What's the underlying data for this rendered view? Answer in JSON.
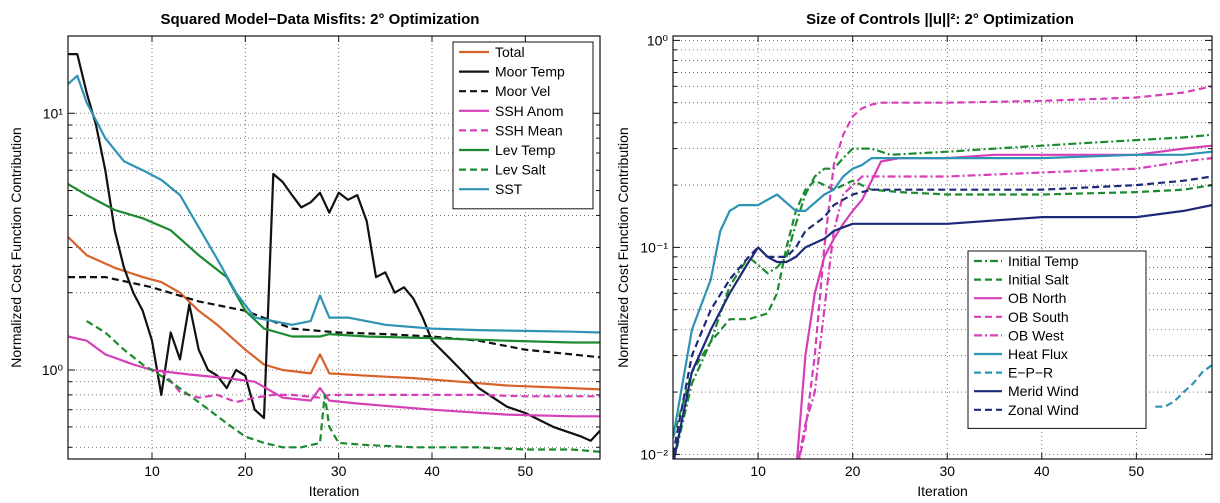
{
  "chart_data": [
    {
      "type": "line",
      "title": "Squared Model−Data Misfits: 2° Optimization",
      "xlabel": "Iteration",
      "ylabel": "Normalized Cost Function Contribution",
      "xlim": [
        1,
        58
      ],
      "ylim": [
        0.45,
        20
      ],
      "yscale": "log",
      "xticks": [
        10,
        20,
        30,
        40,
        50
      ],
      "yticks": [
        1,
        10
      ],
      "ytick_labels": [
        "10⁰",
        "10¹"
      ],
      "grid": true,
      "legend": "top-right",
      "series": [
        {
          "name": "Total",
          "color": "#d9622b",
          "dash": "solid",
          "x": [
            1,
            3,
            6,
            9,
            11,
            13,
            15,
            17,
            20,
            22,
            24,
            27,
            28,
            29,
            33,
            38,
            43,
            48,
            55,
            58
          ],
          "y": [
            3.3,
            2.8,
            2.5,
            2.3,
            2.2,
            2.0,
            1.7,
            1.5,
            1.2,
            1.05,
            1.0,
            0.97,
            1.15,
            0.97,
            0.95,
            0.93,
            0.9,
            0.87,
            0.85,
            0.84
          ]
        },
        {
          "name": "Moor Temp",
          "color": "#111111",
          "dash": "solid",
          "x": [
            1,
            2,
            3,
            4,
            5,
            6,
            7,
            8,
            9,
            10,
            11,
            12,
            13,
            14,
            15,
            16,
            17,
            18,
            19,
            20,
            21,
            22,
            23,
            24,
            25,
            26,
            27,
            28,
            29,
            30,
            31,
            32,
            33,
            34,
            35,
            36,
            37,
            38,
            39,
            40,
            42,
            45,
            48,
            50,
            53,
            56,
            57,
            58
          ],
          "y": [
            17,
            17,
            12,
            9,
            6,
            3.5,
            2.5,
            2,
            1.7,
            1.3,
            0.8,
            1.4,
            1.1,
            1.8,
            1.2,
            1.0,
            0.95,
            0.85,
            1.0,
            0.95,
            0.7,
            0.65,
            5.8,
            5.4,
            4.8,
            4.3,
            4.5,
            4.9,
            4.1,
            4.9,
            4.6,
            4.8,
            3.8,
            2.3,
            2.4,
            2.0,
            2.1,
            1.9,
            1.6,
            1.3,
            1.1,
            0.85,
            0.72,
            0.68,
            0.6,
            0.55,
            0.53,
            0.58
          ]
        },
        {
          "name": "Moor Vel",
          "color": "#111111",
          "dash": "dashed",
          "x": [
            1,
            5,
            10,
            15,
            20,
            25,
            30,
            35,
            40,
            45,
            50,
            55,
            58
          ],
          "y": [
            2.3,
            2.3,
            2.1,
            1.85,
            1.7,
            1.45,
            1.4,
            1.38,
            1.35,
            1.3,
            1.2,
            1.15,
            1.12
          ]
        },
        {
          "name": "SSH Anom",
          "color": "#d63fb8",
          "dash": "solid",
          "x": [
            1,
            3,
            5,
            8,
            10,
            14,
            18,
            21,
            24,
            27,
            28,
            29,
            32,
            40,
            48,
            55,
            58
          ],
          "y": [
            1.35,
            1.3,
            1.15,
            1.05,
            1.0,
            0.96,
            0.93,
            0.9,
            0.78,
            0.76,
            0.85,
            0.76,
            0.74,
            0.7,
            0.67,
            0.66,
            0.66
          ]
        },
        {
          "name": "SSH Mean",
          "color": "#d63fb8",
          "dash": "dashed",
          "x": [
            11,
            13,
            15,
            17,
            19,
            21,
            23,
            25,
            28,
            29,
            32,
            38,
            45,
            50,
            55,
            58
          ],
          "y": [
            1.0,
            0.82,
            0.78,
            0.8,
            0.75,
            0.78,
            0.8,
            0.8,
            0.78,
            0.8,
            0.8,
            0.8,
            0.8,
            0.79,
            0.79,
            0.79
          ]
        },
        {
          "name": "Lev Temp",
          "color": "#1c8a2e",
          "dash": "solid",
          "x": [
            1,
            3,
            6,
            9,
            12,
            15,
            18,
            20,
            22,
            25,
            28,
            29,
            33,
            40,
            48,
            55,
            58
          ],
          "y": [
            5.3,
            4.8,
            4.2,
            3.9,
            3.5,
            2.8,
            2.3,
            1.7,
            1.45,
            1.35,
            1.35,
            1.38,
            1.35,
            1.33,
            1.3,
            1.28,
            1.28
          ]
        },
        {
          "name": "Lev Salt",
          "color": "#1c8a2e",
          "dash": "dashed",
          "x": [
            3,
            5,
            7,
            9,
            12,
            15,
            18,
            20,
            22,
            24,
            26,
            28,
            28.5,
            29,
            30,
            33,
            38,
            45,
            50,
            55,
            58
          ],
          "y": [
            1.55,
            1.4,
            1.2,
            1.05,
            0.9,
            0.75,
            0.62,
            0.55,
            0.52,
            0.5,
            0.5,
            0.52,
            0.8,
            0.6,
            0.52,
            0.51,
            0.5,
            0.5,
            0.49,
            0.49,
            0.48
          ]
        },
        {
          "name": "SST",
          "color": "#2e93b5",
          "dash": "solid",
          "x": [
            1,
            2,
            3,
            5,
            7,
            9,
            11,
            13,
            15,
            17,
            19,
            21,
            23,
            25,
            27,
            28,
            29,
            31,
            35,
            40,
            45,
            50,
            55,
            58
          ],
          "y": [
            13,
            14,
            11,
            8,
            6.5,
            6,
            5.5,
            4.8,
            3.6,
            2.7,
            2.0,
            1.6,
            1.55,
            1.5,
            1.55,
            1.95,
            1.6,
            1.6,
            1.5,
            1.45,
            1.43,
            1.42,
            1.41,
            1.4
          ]
        }
      ]
    },
    {
      "type": "line",
      "title": "Size of Controls ||u||²: 2° Optimization",
      "xlabel": "Iteration",
      "ylabel": "Normalized Cost Function Contribution",
      "xlim": [
        1,
        58
      ],
      "ylim": [
        0.0095,
        1.05
      ],
      "yscale": "log",
      "xticks": [
        10,
        20,
        30,
        40,
        50
      ],
      "yticks": [
        0.01,
        0.1,
        1
      ],
      "ytick_labels": [
        "10⁻²",
        "10⁻¹",
        "10⁰"
      ],
      "grid": true,
      "legend": "bottom-right",
      "series": [
        {
          "name": "Initial Temp",
          "color": "#1c8a2e",
          "dash": "dashdot",
          "x": [
            1,
            3,
            5,
            7,
            9,
            11,
            12,
            13,
            14,
            15,
            16,
            17,
            18,
            19,
            20,
            21,
            22,
            24,
            30,
            35,
            40,
            45,
            50,
            55,
            58
          ],
          "y": [
            0.009,
            0.022,
            0.035,
            0.065,
            0.09,
            0.075,
            0.08,
            0.09,
            0.13,
            0.18,
            0.22,
            0.24,
            0.24,
            0.27,
            0.3,
            0.3,
            0.3,
            0.28,
            0.29,
            0.3,
            0.31,
            0.32,
            0.33,
            0.34,
            0.35
          ]
        },
        {
          "name": "Initial Salt",
          "color": "#1c8a2e",
          "dash": "dashed",
          "x": [
            1,
            3,
            5,
            7,
            9,
            11,
            12,
            13,
            14,
            15,
            16,
            17,
            18,
            19,
            20,
            22,
            25,
            30,
            40,
            50,
            55,
            58
          ],
          "y": [
            0.012,
            0.025,
            0.035,
            0.045,
            0.045,
            0.048,
            0.06,
            0.1,
            0.15,
            0.19,
            0.21,
            0.2,
            0.19,
            0.2,
            0.21,
            0.19,
            0.185,
            0.18,
            0.18,
            0.185,
            0.19,
            0.2
          ]
        },
        {
          "name": "OB North",
          "color": "#d63fb8",
          "dash": "solid",
          "x": [
            14,
            15,
            16,
            17,
            18,
            19,
            20,
            21,
            22,
            23,
            25,
            30,
            35,
            40,
            45,
            50,
            55,
            58
          ],
          "y": [
            0.008,
            0.03,
            0.06,
            0.09,
            0.11,
            0.13,
            0.15,
            0.17,
            0.21,
            0.26,
            0.27,
            0.27,
            0.28,
            0.28,
            0.28,
            0.28,
            0.3,
            0.31
          ]
        },
        {
          "name": "OB South",
          "color": "#d63fb8",
          "dash": "dashed",
          "x": [
            14,
            15,
            16,
            17,
            18,
            19,
            20,
            21,
            22,
            23,
            25,
            30,
            40,
            50,
            55,
            58
          ],
          "y": [
            0.008,
            0.013,
            0.03,
            0.1,
            0.25,
            0.35,
            0.43,
            0.47,
            0.49,
            0.5,
            0.5,
            0.5,
            0.51,
            0.53,
            0.56,
            0.6
          ]
        },
        {
          "name": "OB West",
          "color": "#d63fb8",
          "dash": "dashdot",
          "x": [
            14,
            15,
            16,
            17,
            18,
            19,
            20,
            21,
            22,
            23,
            25,
            30,
            40,
            50,
            55,
            58
          ],
          "y": [
            0.008,
            0.014,
            0.02,
            0.05,
            0.12,
            0.18,
            0.2,
            0.22,
            0.22,
            0.22,
            0.22,
            0.22,
            0.23,
            0.24,
            0.26,
            0.27
          ]
        },
        {
          "name": "Heat Flux",
          "color": "#2e93b5",
          "dash": "solid",
          "x": [
            1,
            3,
            5,
            6,
            7,
            8,
            10,
            12,
            14,
            15,
            17,
            18,
            19,
            20,
            21,
            22,
            24,
            30,
            40,
            50,
            55,
            58
          ],
          "y": [
            0.012,
            0.04,
            0.07,
            0.12,
            0.15,
            0.16,
            0.16,
            0.18,
            0.15,
            0.15,
            0.18,
            0.19,
            0.22,
            0.24,
            0.25,
            0.27,
            0.27,
            0.27,
            0.27,
            0.28,
            0.28,
            0.29
          ]
        },
        {
          "name": "E−P−R",
          "color": "#2e93b5",
          "dash": "dashed",
          "x": [
            52,
            53,
            54,
            55,
            56,
            57,
            58
          ],
          "y": [
            0.017,
            0.017,
            0.018,
            0.02,
            0.022,
            0.025,
            0.027
          ]
        },
        {
          "name": "Merid Wind",
          "color": "#1e2a78",
          "dash": "solid",
          "x": [
            1,
            3,
            5,
            7,
            9,
            10,
            11,
            12,
            13,
            14,
            15,
            17,
            18,
            19,
            20,
            22,
            25,
            30,
            40,
            50,
            55,
            58
          ],
          "y": [
            0.009,
            0.025,
            0.04,
            0.06,
            0.085,
            0.1,
            0.09,
            0.085,
            0.085,
            0.09,
            0.1,
            0.11,
            0.12,
            0.125,
            0.13,
            0.13,
            0.13,
            0.13,
            0.14,
            0.14,
            0.15,
            0.16
          ]
        },
        {
          "name": "Zonal Wind",
          "color": "#1e2a78",
          "dash": "dashed",
          "x": [
            1,
            3,
            5,
            7,
            9,
            10,
            11,
            12,
            13,
            14,
            15,
            17,
            18,
            19,
            20,
            22,
            25,
            30,
            40,
            50,
            55,
            58
          ],
          "y": [
            0.01,
            0.03,
            0.05,
            0.07,
            0.09,
            0.1,
            0.09,
            0.09,
            0.09,
            0.1,
            0.12,
            0.14,
            0.16,
            0.17,
            0.18,
            0.19,
            0.19,
            0.19,
            0.19,
            0.2,
            0.21,
            0.22
          ]
        }
      ]
    }
  ]
}
